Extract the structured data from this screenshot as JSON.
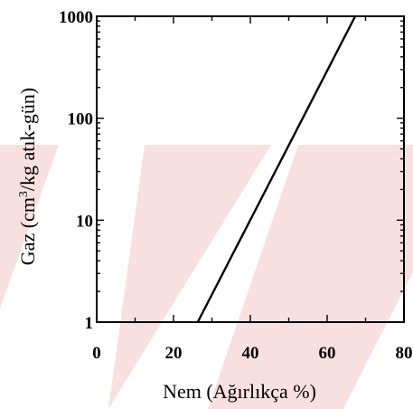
{
  "chart_data": {
    "type": "line",
    "xlabel": "Nem (Ağırlıkça %)",
    "ylabel": "Gaz (cm³/kg atık-gün)",
    "ylabel_parts": {
      "before": "Gaz (cm",
      "sup": "3",
      "after": "/kg atık-gün)"
    },
    "xlim": [
      0,
      80
    ],
    "ylim": [
      1,
      1000
    ],
    "yscale": "log",
    "x_ticks": [
      0,
      20,
      40,
      60,
      80
    ],
    "x_tick_labels": [
      "0",
      "20",
      "40",
      "60",
      "80"
    ],
    "y_ticks": [
      1,
      10,
      100,
      1000
    ],
    "y_tick_labels": [
      "1",
      "10",
      "100",
      "1000"
    ],
    "grid": false,
    "series": [
      {
        "x": [
          26.3,
          67.3
        ],
        "y": [
          1,
          1000
        ]
      }
    ]
  },
  "colors": {
    "line": "#000000",
    "watermark": "#f3c7c7"
  }
}
